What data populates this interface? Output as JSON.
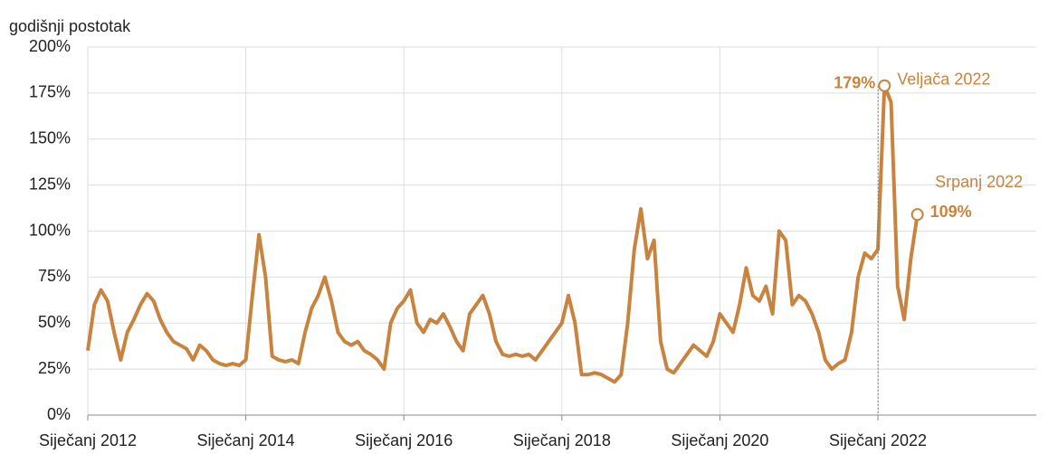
{
  "chart_data": {
    "type": "line",
    "y_axis_label": "godišnji postotak",
    "x": [
      "2012-01",
      "2012-02",
      "2012-03",
      "2012-04",
      "2012-05",
      "2012-06",
      "2012-07",
      "2012-08",
      "2012-09",
      "2012-10",
      "2012-11",
      "2012-12",
      "2013-01",
      "2013-02",
      "2013-03",
      "2013-04",
      "2013-05",
      "2013-06",
      "2013-07",
      "2013-08",
      "2013-09",
      "2013-10",
      "2013-11",
      "2013-12",
      "2014-01",
      "2014-02",
      "2014-03",
      "2014-04",
      "2014-05",
      "2014-06",
      "2014-07",
      "2014-08",
      "2014-09",
      "2014-10",
      "2014-11",
      "2014-12",
      "2015-01",
      "2015-02",
      "2015-03",
      "2015-04",
      "2015-05",
      "2015-06",
      "2015-07",
      "2015-08",
      "2015-09",
      "2015-10",
      "2015-11",
      "2015-12",
      "2016-01",
      "2016-02",
      "2016-03",
      "2016-04",
      "2016-05",
      "2016-06",
      "2016-07",
      "2016-08",
      "2016-09",
      "2016-10",
      "2016-11",
      "2016-12",
      "2017-01",
      "2017-02",
      "2017-03",
      "2017-04",
      "2017-05",
      "2017-06",
      "2017-07",
      "2017-08",
      "2017-09",
      "2017-10",
      "2017-11",
      "2017-12",
      "2018-01",
      "2018-02",
      "2018-03",
      "2018-04",
      "2018-05",
      "2018-06",
      "2018-07",
      "2018-08",
      "2018-09",
      "2018-10",
      "2018-11",
      "2018-12",
      "2019-01",
      "2019-02",
      "2019-03",
      "2019-04",
      "2019-05",
      "2019-06",
      "2019-07",
      "2019-08",
      "2019-09",
      "2019-10",
      "2019-11",
      "2019-12",
      "2020-01",
      "2020-02",
      "2020-03",
      "2020-04",
      "2020-05",
      "2020-06",
      "2020-07",
      "2020-08",
      "2020-09",
      "2020-10",
      "2020-11",
      "2020-12",
      "2021-01",
      "2021-02",
      "2021-03",
      "2021-04",
      "2021-05",
      "2021-06",
      "2021-07",
      "2021-08",
      "2021-09",
      "2021-10",
      "2021-11",
      "2021-12",
      "2022-01",
      "2022-02",
      "2022-03",
      "2022-04",
      "2022-05",
      "2022-06",
      "2022-07"
    ],
    "series": [
      {
        "color": "#c8843e",
        "values": [
          35,
          60,
          68,
          62,
          45,
          30,
          45,
          52,
          60,
          66,
          62,
          52,
          45,
          40,
          38,
          36,
          30,
          38,
          35,
          30,
          28,
          27,
          28,
          27,
          30,
          65,
          98,
          75,
          32,
          30,
          29,
          30,
          28,
          45,
          58,
          65,
          75,
          62,
          45,
          40,
          38,
          40,
          35,
          33,
          30,
          25,
          50,
          58,
          62,
          68,
          50,
          45,
          52,
          50,
          55,
          48,
          40,
          35,
          55,
          60,
          65,
          55,
          40,
          33,
          32,
          33,
          32,
          33,
          30,
          35,
          40,
          45,
          50,
          65,
          50,
          22,
          22,
          23,
          22,
          20,
          18,
          22,
          50,
          90,
          112,
          85,
          95,
          40,
          25,
          23,
          28,
          33,
          38,
          35,
          32,
          40,
          55,
          50,
          45,
          60,
          80,
          65,
          62,
          70,
          55,
          100,
          95,
          60,
          65,
          62,
          55,
          45,
          30,
          25,
          28,
          30,
          45,
          75,
          88,
          85,
          90,
          179,
          170,
          70,
          52,
          85,
          109
        ]
      }
    ],
    "ylim": [
      0,
      200
    ],
    "yticks": [
      {
        "value": 0,
        "label": "0%"
      },
      {
        "value": 25,
        "label": "25%"
      },
      {
        "value": 50,
        "label": "50%"
      },
      {
        "value": 75,
        "label": "75%"
      },
      {
        "value": 100,
        "label": "100%"
      },
      {
        "value": 125,
        "label": "125%"
      },
      {
        "value": 150,
        "label": "150%"
      },
      {
        "value": 175,
        "label": "175%"
      },
      {
        "value": 200,
        "label": "200%"
      }
    ],
    "xticks": [
      {
        "value": "2012-01",
        "label": "Siječanj 2012"
      },
      {
        "value": "2014-01",
        "label": "Siječanj 2014"
      },
      {
        "value": "2016-01",
        "label": "Siječanj 2016"
      },
      {
        "value": "2018-01",
        "label": "Siječanj 2018"
      },
      {
        "value": "2020-01",
        "label": "Siječanj 2020"
      },
      {
        "value": "2022-01",
        "label": "Siječanj 2022"
      }
    ],
    "grid": true,
    "annotations": [
      {
        "x": "2022-02",
        "y": 179,
        "value_label": "179%",
        "label": "Veljača 2022"
      },
      {
        "x": "2022-07",
        "y": 109,
        "value_label": "109%",
        "label": "Srpanj 2022"
      }
    ]
  }
}
